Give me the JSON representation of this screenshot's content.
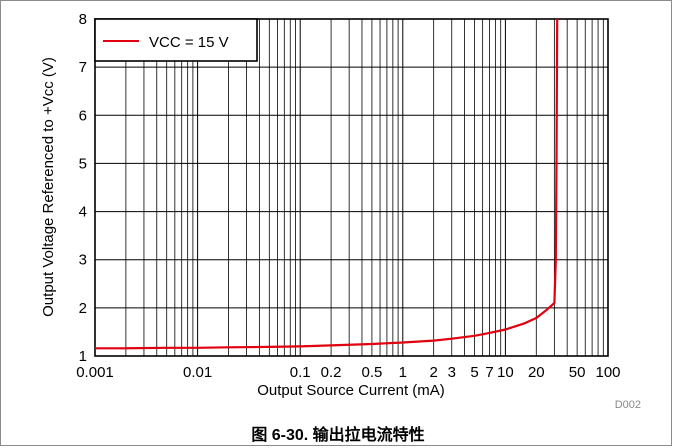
{
  "chart_data": {
    "type": "line",
    "title": "",
    "xlabel": "Output Source Current (mA)",
    "ylabel": "Output Voltage Referenced to +Vcc (V)",
    "x_scale": "log",
    "xlim": [
      0.001,
      100
    ],
    "ylim": [
      1,
      8
    ],
    "grid": true,
    "legend_position": "top-left",
    "x_tick_labels": [
      {
        "value": 0.001,
        "label": "0.001"
      },
      {
        "value": 0.01,
        "label": "0.01"
      },
      {
        "value": 0.1,
        "label": "0.1"
      },
      {
        "value": 0.2,
        "label": "0.2"
      },
      {
        "value": 0.5,
        "label": "0.5"
      },
      {
        "value": 1,
        "label": "1"
      },
      {
        "value": 2,
        "label": "2"
      },
      {
        "value": 3,
        "label": "3"
      },
      {
        "value": 5,
        "label": "5"
      },
      {
        "value": 7,
        "label": "7"
      },
      {
        "value": 10,
        "label": "10"
      },
      {
        "value": 20,
        "label": "20"
      },
      {
        "value": 50,
        "label": "50"
      },
      {
        "value": 100,
        "label": "100"
      }
    ],
    "y_tick_labels": [
      "1",
      "2",
      "3",
      "4",
      "5",
      "6",
      "7",
      "8"
    ],
    "series": [
      {
        "name": "VCC = 15 V",
        "color": "#e0000f",
        "points": [
          [
            0.001,
            1.16
          ],
          [
            0.002,
            1.16
          ],
          [
            0.005,
            1.17
          ],
          [
            0.01,
            1.17
          ],
          [
            0.02,
            1.18
          ],
          [
            0.05,
            1.19
          ],
          [
            0.1,
            1.2
          ],
          [
            0.2,
            1.22
          ],
          [
            0.5,
            1.25
          ],
          [
            1,
            1.28
          ],
          [
            2,
            1.32
          ],
          [
            3,
            1.36
          ],
          [
            5,
            1.42
          ],
          [
            7,
            1.48
          ],
          [
            10,
            1.55
          ],
          [
            15,
            1.67
          ],
          [
            20,
            1.79
          ],
          [
            25,
            1.95
          ],
          [
            30,
            2.1
          ],
          [
            31,
            3
          ],
          [
            31.5,
            5
          ],
          [
            32,
            8
          ]
        ]
      }
    ]
  },
  "footer": {
    "code": "D002",
    "caption": "图 6-30. 输出拉电流特性"
  }
}
